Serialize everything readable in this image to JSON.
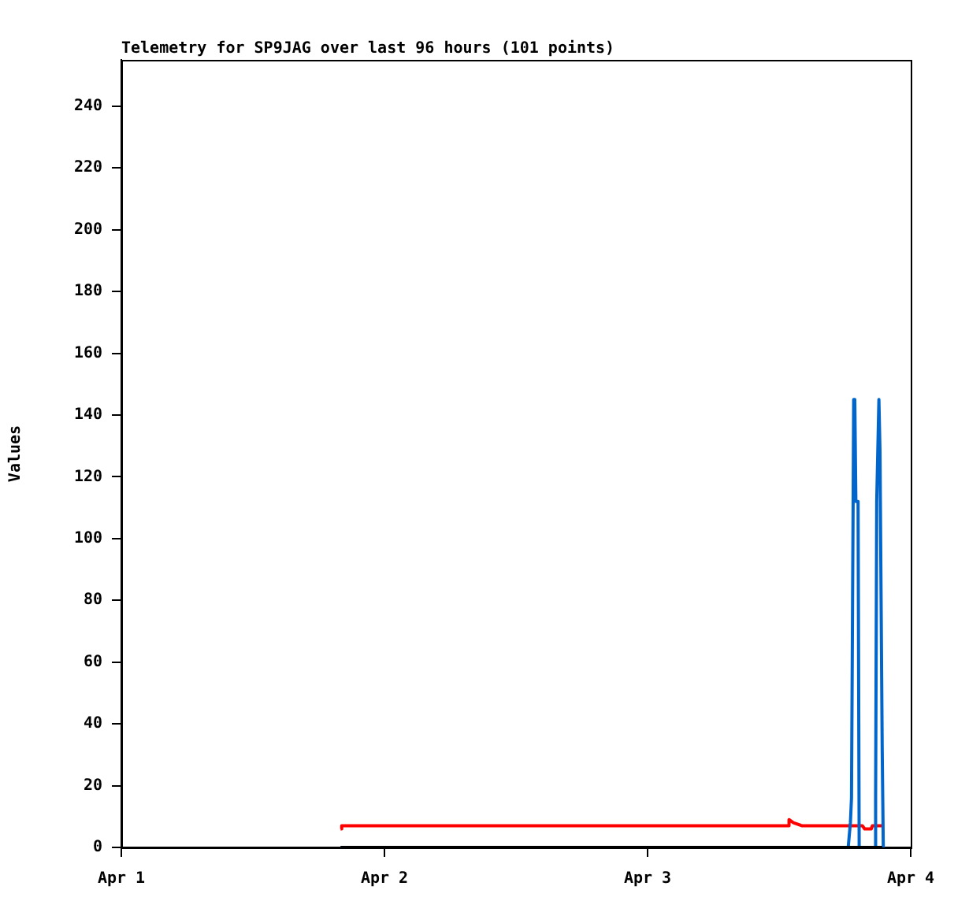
{
  "chart_data": {
    "type": "line",
    "title": "Telemetry for SP9JAG over last 96 hours (101 points)",
    "ylabel": "Values",
    "xlim": [
      "--04-01",
      "--04-04"
    ],
    "xticks": [
      {
        "value": "--04-01",
        "label": "Apr 1"
      },
      {
        "value": "--04-02",
        "label": "Apr 2"
      },
      {
        "value": "--04-03",
        "label": "Apr 3"
      },
      {
        "value": "--04-04",
        "label": "Apr 4"
      }
    ],
    "ylim": [
      0,
      255
    ],
    "yticks": [
      0,
      20,
      40,
      60,
      80,
      100,
      120,
      140,
      160,
      180,
      200,
      220,
      240
    ],
    "grid": false,
    "legend": false,
    "marker": "none",
    "line_style": "solid",
    "series": [
      {
        "color": "#000000",
        "x": [
          "--04-01T20:00",
          "--04-03T21:24"
        ],
        "values": [
          0,
          0
        ]
      },
      {
        "color": "#0066cc",
        "x": [
          "--04-01T20:00",
          "--04-03T18:18",
          "--04-03T18:30",
          "--04-03T18:36",
          "--04-03T18:48",
          "--04-03T18:54",
          "--04-03T19:00",
          "--04-03T19:12",
          "--04-03T19:18",
          "--04-03T20:42",
          "--04-03T20:48",
          "--04-03T20:54",
          "--04-03T21:06",
          "--04-03T21:12",
          "--04-03T21:24",
          "--04-03T21:30"
        ],
        "values": [
          0,
          0,
          8,
          16,
          145,
          145,
          112,
          112,
          0,
          0,
          16,
          112,
          145,
          128,
          32,
          0
        ]
      },
      {
        "color": "#ff0000",
        "x": [
          "--04-01T20:00",
          "--04-01T20:06",
          "--04-03T12:48",
          "--04-03T12:54",
          "--04-03T13:18",
          "--04-03T14:06",
          "--04-03T19:36",
          "--04-03T19:48",
          "--04-03T20:24",
          "--04-03T20:30",
          "--04-03T21:24"
        ],
        "values": [
          6,
          7,
          7,
          9,
          8,
          7,
          7,
          6,
          6,
          7,
          7
        ]
      }
    ]
  }
}
